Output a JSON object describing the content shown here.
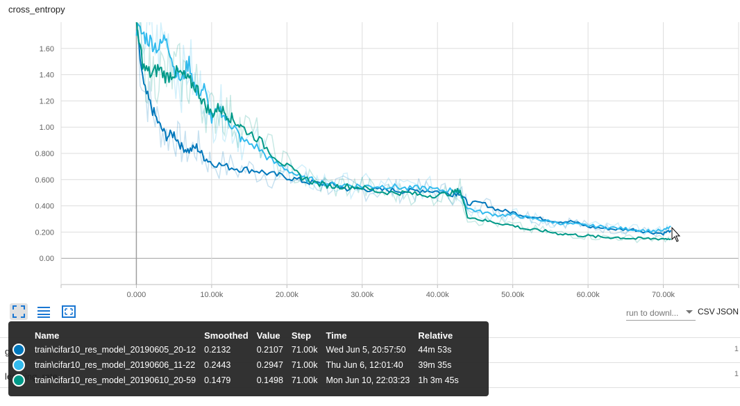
{
  "chart_data": {
    "type": "line",
    "title": "cross_entropy",
    "xlim": [
      -10000,
      80000
    ],
    "ylim": [
      -0.2,
      1.8
    ],
    "x_ticks": [
      "0.000",
      "10.00k",
      "20.00k",
      "30.00k",
      "40.00k",
      "50.00k",
      "60.00k",
      "70.00k"
    ],
    "x_tick_values": [
      0,
      10000,
      20000,
      30000,
      40000,
      50000,
      60000,
      70000
    ],
    "y_ticks": [
      "0.00",
      "0.200",
      "0.400",
      "0.600",
      "0.800",
      "1.00",
      "1.20",
      "1.40",
      "1.60"
    ],
    "y_tick_values": [
      0,
      0.2,
      0.4,
      0.6,
      0.8,
      1.0,
      1.2,
      1.4,
      1.6
    ],
    "grid": true,
    "series": [
      {
        "name": "train\\cifar10_res_model_20190605_20-12",
        "color": "#0077bb",
        "x": [
          0,
          1000,
          2000,
          3000,
          4000,
          5000,
          6000,
          7000,
          8000,
          9000,
          10000,
          12000,
          14000,
          16000,
          18000,
          20000,
          22000,
          24000,
          26000,
          28000,
          30000,
          32000,
          34000,
          36000,
          38000,
          40000,
          42000,
          43000,
          44000,
          46000,
          48000,
          50000,
          52000,
          54000,
          56000,
          58000,
          60000,
          62000,
          64000,
          66000,
          68000,
          70000,
          71000
        ],
        "y": [
          1.75,
          1.3,
          1.15,
          1.02,
          0.93,
          0.95,
          0.85,
          0.82,
          0.85,
          0.77,
          0.73,
          0.7,
          0.68,
          0.67,
          0.64,
          0.62,
          0.59,
          0.57,
          0.56,
          0.53,
          0.53,
          0.52,
          0.52,
          0.51,
          0.52,
          0.51,
          0.49,
          0.5,
          0.42,
          0.42,
          0.37,
          0.35,
          0.32,
          0.3,
          0.28,
          0.28,
          0.24,
          0.23,
          0.22,
          0.22,
          0.2,
          0.19,
          0.2132
        ]
      },
      {
        "name": "train\\cifar10_res_model_20190606_11-22",
        "color": "#33bbee",
        "x": [
          0,
          1000,
          2000,
          3000,
          4000,
          5000,
          6000,
          7000,
          8000,
          9000,
          10000,
          11000,
          12000,
          13000,
          14000,
          16000,
          18000,
          20000,
          22000,
          24000,
          26000,
          28000,
          30000,
          32000,
          34000,
          36000,
          38000,
          40000,
          42000,
          43000,
          44000,
          46000,
          48000,
          50000,
          52000,
          54000,
          56000,
          58000,
          60000,
          62000,
          64000,
          66000,
          68000,
          70000,
          71000
        ],
        "y": [
          1.75,
          1.7,
          1.65,
          1.6,
          1.7,
          1.45,
          1.35,
          1.5,
          1.25,
          1.3,
          1.05,
          1.15,
          1.05,
          1.0,
          0.9,
          0.85,
          0.74,
          0.68,
          0.61,
          0.59,
          0.56,
          0.56,
          0.55,
          0.55,
          0.55,
          0.53,
          0.54,
          0.52,
          0.52,
          0.5,
          0.38,
          0.35,
          0.33,
          0.33,
          0.31,
          0.29,
          0.27,
          0.26,
          0.25,
          0.24,
          0.23,
          0.22,
          0.21,
          0.21,
          0.2443
        ]
      },
      {
        "name": "train\\cifar10_res_model_20190610_20-59",
        "color": "#009988",
        "x": [
          0,
          1000,
          2000,
          3000,
          4000,
          5000,
          6000,
          7000,
          8000,
          9000,
          10000,
          11000,
          12000,
          13000,
          14000,
          16000,
          18000,
          20000,
          22000,
          24000,
          26000,
          28000,
          30000,
          32000,
          34000,
          36000,
          38000,
          40000,
          42000,
          43000,
          44000,
          46000,
          48000,
          50000,
          52000,
          54000,
          56000,
          58000,
          60000,
          62000,
          64000,
          66000,
          68000,
          70000,
          71000
        ],
        "y": [
          1.75,
          1.45,
          1.4,
          1.45,
          1.38,
          1.42,
          1.4,
          1.35,
          1.3,
          1.18,
          1.1,
          1.15,
          1.1,
          1.05,
          1.0,
          0.92,
          0.8,
          0.7,
          0.62,
          0.57,
          0.55,
          0.55,
          0.54,
          0.51,
          0.5,
          0.5,
          0.48,
          0.48,
          0.5,
          0.52,
          0.32,
          0.29,
          0.27,
          0.25,
          0.22,
          0.21,
          0.19,
          0.18,
          0.17,
          0.16,
          0.16,
          0.15,
          0.15,
          0.15,
          0.1479
        ]
      }
    ]
  },
  "toolbar": {
    "icons": [
      "fit-domain-icon",
      "toggle-log-scale-icon",
      "zoom-reset-icon"
    ]
  },
  "download": {
    "placeholder": "run to downl...",
    "csv": "CSV",
    "json": "JSON"
  },
  "background_rows": [
    {
      "label": "glob",
      "count": "1"
    },
    {
      "label": "learning_rate",
      "count": "1"
    }
  ],
  "tooltip": {
    "headers": {
      "name": "Name",
      "smoothed": "Smoothed",
      "value": "Value",
      "step": "Step",
      "time": "Time",
      "relative": "Relative"
    },
    "rows": [
      {
        "color": "#0077bb",
        "name": "train\\cifar10_res_model_20190605_20-12",
        "smoothed": "0.2132",
        "value": "0.2107",
        "step": "71.00k",
        "time": "Wed Jun 5, 20:57:50",
        "relative": "44m 53s"
      },
      {
        "color": "#33bbee",
        "name": "train\\cifar10_res_model_20190606_11-22",
        "smoothed": "0.2443",
        "value": "0.2947",
        "step": "71.00k",
        "time": "Thu Jun 6, 12:01:40",
        "relative": "39m 35s"
      },
      {
        "color": "#009988",
        "name": "train\\cifar10_res_model_20190610_20-59",
        "smoothed": "0.1479",
        "value": "0.1498",
        "step": "71.00k",
        "time": "Mon Jun 10, 22:03:23",
        "relative": "1h 3m 45s"
      }
    ]
  }
}
